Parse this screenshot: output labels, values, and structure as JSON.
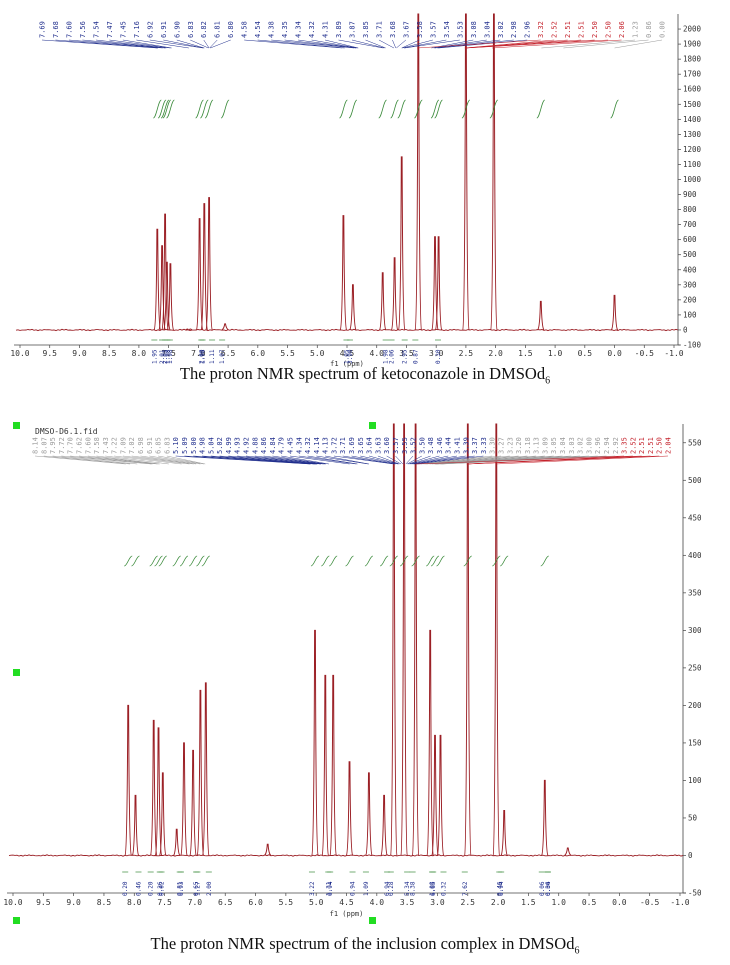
{
  "figure": {
    "caption_top": {
      "text": "The proton NMR spectrum of ketoconazole in DMSOd",
      "sub": "6"
    },
    "caption_bottom": {
      "text": "The proton NMR spectrum of the inclusion complex in DMSOd",
      "sub": "6"
    }
  },
  "colors": {
    "spectrum": "#9b1f25",
    "integral": "#3a8a3a",
    "label_blue": "#1f2d8c",
    "label_red": "#c4202a",
    "label_gray": "#9a9a9a",
    "marker": "#22dd22"
  },
  "chart_data": [
    {
      "type": "line",
      "title": "",
      "xlabel": "f1 (ppm)",
      "ylabel": "",
      "x_reversed": true,
      "xlim": [
        10.0,
        -1.0
      ],
      "ylim": [
        -100,
        2100
      ],
      "x_ticks": [
        "10.0",
        "9.5",
        "9.0",
        "8.5",
        "8.0",
        "7.5",
        "7.0",
        "6.5",
        "6.0",
        "5.5",
        "5.0",
        "4.5",
        "4.0",
        "3.5",
        "3.0",
        "2.5",
        "2.0",
        "1.5",
        "1.0",
        "0.5",
        "0.0",
        "-0.5",
        "-1.0"
      ],
      "y_ticks": [
        "-100",
        "0",
        "100",
        "200",
        "300",
        "400",
        "500",
        "600",
        "700",
        "800",
        "900",
        "1000",
        "1100",
        "1200",
        "1300",
        "1400",
        "1500",
        "1600",
        "1700",
        "1800",
        "1900",
        "2000"
      ],
      "peaks": [
        {
          "x": 7.69,
          "y": 670
        },
        {
          "x": 7.61,
          "y": 560
        },
        {
          "x": 7.56,
          "y": 770
        },
        {
          "x": 7.53,
          "y": 450
        },
        {
          "x": 7.47,
          "y": 440
        },
        {
          "x": 7.16,
          "y": 0
        },
        {
          "x": 6.98,
          "y": 740
        },
        {
          "x": 6.9,
          "y": 840
        },
        {
          "x": 6.82,
          "y": 880
        },
        {
          "x": 6.55,
          "y": 40
        },
        {
          "x": 4.56,
          "y": 760
        },
        {
          "x": 4.4,
          "y": 300
        },
        {
          "x": 3.9,
          "y": 380
        },
        {
          "x": 3.7,
          "y": 480
        },
        {
          "x": 3.58,
          "y": 1150
        },
        {
          "x": 3.3,
          "y": 2100
        },
        {
          "x": 3.02,
          "y": 620
        },
        {
          "x": 2.96,
          "y": 620
        },
        {
          "x": 2.5,
          "y": 2100
        },
        {
          "x": 2.03,
          "y": 2100
        },
        {
          "x": 1.24,
          "y": 190
        },
        {
          "x": 0.0,
          "y": 230
        }
      ],
      "integrals": [
        "1.95",
        "2.05",
        "2.01",
        "1.98",
        "1.98",
        "1.98",
        "2.00",
        "1.11",
        "1.07",
        "1.05",
        "3.90",
        "1.98",
        "2.06",
        "2.95",
        "0.87",
        "0.30"
      ],
      "peak_labels": {
        "aromatic": [
          "7.69",
          "7.68",
          "7.60",
          "7.56",
          "7.54",
          "7.47",
          "7.45",
          "7.16",
          "6.92",
          "6.91",
          "6.90",
          "6.83",
          "6.82",
          "6.81",
          "6.80"
        ],
        "aliphatic": [
          "4.58",
          "4.54",
          "4.38",
          "4.35",
          "4.34",
          "4.32",
          "4.31",
          "3.89",
          "3.87",
          "3.85",
          "3.71",
          "3.68",
          "3.67",
          "3.58",
          "3.57",
          "3.54",
          "3.53",
          "3.08",
          "3.04",
          "3.02",
          "2.98",
          "2.96"
        ],
        "solvent": [
          "3.32",
          "2.52",
          "2.51",
          "2.51",
          "2.50",
          "2.50",
          "2.06"
        ],
        "other": [
          "1.23",
          "0.86",
          "0.00"
        ]
      }
    },
    {
      "type": "line",
      "title": "DMSO-D6.1.fid",
      "xlabel": "f1 (ppm)",
      "ylabel": "",
      "x_reversed": true,
      "xlim": [
        10.0,
        -1.0
      ],
      "ylim": [
        -50,
        575
      ],
      "x_ticks": [
        "10.0",
        "9.5",
        "9.0",
        "8.5",
        "8.0",
        "7.5",
        "7.0",
        "6.5",
        "6.0",
        "5.5",
        "5.0",
        "4.5",
        "4.0",
        "3.5",
        "3.0",
        "2.5",
        "2.0",
        "1.5",
        "1.0",
        "0.5",
        "0.0",
        "-0.5",
        "-1.0"
      ],
      "y_ticks": [
        "-50",
        "0",
        "50",
        "100",
        "150",
        "200",
        "250",
        "300",
        "350",
        "400",
        "450",
        "500",
        "550"
      ],
      "peaks": [
        {
          "x": 8.1,
          "y": 200
        },
        {
          "x": 7.98,
          "y": 80
        },
        {
          "x": 7.68,
          "y": 180
        },
        {
          "x": 7.6,
          "y": 170
        },
        {
          "x": 7.53,
          "y": 110
        },
        {
          "x": 7.3,
          "y": 35
        },
        {
          "x": 7.18,
          "y": 150
        },
        {
          "x": 7.03,
          "y": 140
        },
        {
          "x": 6.91,
          "y": 220
        },
        {
          "x": 6.82,
          "y": 230
        },
        {
          "x": 5.8,
          "y": 15
        },
        {
          "x": 5.02,
          "y": 300
        },
        {
          "x": 4.85,
          "y": 240
        },
        {
          "x": 4.72,
          "y": 240
        },
        {
          "x": 4.45,
          "y": 125
        },
        {
          "x": 4.13,
          "y": 110
        },
        {
          "x": 3.88,
          "y": 80
        },
        {
          "x": 3.72,
          "y": 575
        },
        {
          "x": 3.55,
          "y": 575
        },
        {
          "x": 3.36,
          "y": 575
        },
        {
          "x": 3.12,
          "y": 300
        },
        {
          "x": 3.04,
          "y": 160
        },
        {
          "x": 2.95,
          "y": 160
        },
        {
          "x": 2.5,
          "y": 575
        },
        {
          "x": 2.03,
          "y": 575
        },
        {
          "x": 1.9,
          "y": 60
        },
        {
          "x": 1.23,
          "y": 100
        },
        {
          "x": 0.85,
          "y": 10
        }
      ],
      "integrals": [
        "0.20",
        "0.46",
        "0.20",
        "0.02",
        "0.26",
        "0.81",
        "0.93",
        "0.65",
        "1.27",
        "2.00",
        "3.22",
        "1.31",
        "0.94",
        "0.94",
        "1.09",
        "6.94",
        "0.28",
        "5.34",
        "8.38",
        "6.65",
        "1.08",
        "0.32",
        "7.62",
        "0.46",
        "0.94",
        "0.36",
        "0.06",
        "0.04"
      ],
      "peak_labels": {
        "left": [
          "8.14",
          "8.07",
          "7.95",
          "7.72",
          "7.70",
          "7.62",
          "7.60",
          "7.58",
          "7.43",
          "7.22",
          "7.09",
          "7.02",
          "6.98",
          "6.91",
          "6.85",
          "6.83"
        ],
        "blue": [
          "5.10",
          "5.09",
          "5.00",
          "4.98",
          "5.04",
          "5.02",
          "4.99",
          "4.93",
          "4.92",
          "4.88",
          "4.86",
          "4.84",
          "4.79",
          "4.45",
          "4.34",
          "4.32",
          "4.14",
          "4.13",
          "3.72",
          "3.71",
          "3.69",
          "3.65",
          "3.64",
          "3.63",
          "3.60",
          "3.57",
          "3.55",
          "3.52",
          "3.50",
          "3.48",
          "3.46",
          "3.44",
          "3.41",
          "3.39",
          "3.37",
          "3.33"
        ],
        "right": [
          "3.30",
          "3.27",
          "3.23",
          "3.20",
          "3.18",
          "3.13",
          "3.09",
          "3.05",
          "3.04",
          "3.03",
          "3.02",
          "3.00",
          "2.96",
          "2.94",
          "2.92"
        ],
        "solvent": [
          "3.35",
          "2.52",
          "2.51",
          "2.51",
          "2.50",
          "2.04"
        ]
      }
    }
  ]
}
